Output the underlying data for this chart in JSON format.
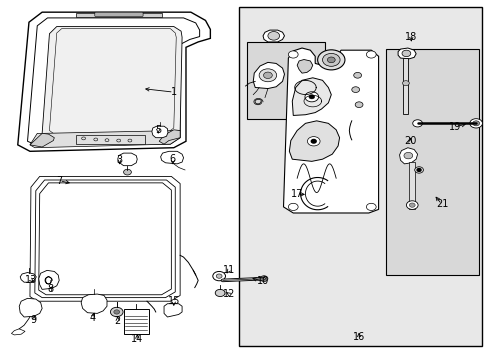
{
  "background_color": "#ffffff",
  "line_color": "#000000",
  "fig_width": 4.89,
  "fig_height": 3.6,
  "dpi": 100,
  "panel_bg": "#e8e8e8",
  "label_positions": {
    "1": [
      0.355,
      0.745,
      0.29,
      0.755
    ],
    "2": [
      0.24,
      0.108,
      0.24,
      0.128
    ],
    "3": [
      0.243,
      0.555,
      0.245,
      0.535
    ],
    "4": [
      0.188,
      0.115,
      0.195,
      0.138
    ],
    "5": [
      0.323,
      0.64,
      0.323,
      0.622
    ],
    "6": [
      0.353,
      0.558,
      0.353,
      0.535
    ],
    "7": [
      0.12,
      0.498,
      0.148,
      0.49
    ],
    "8": [
      0.102,
      0.195,
      0.11,
      0.21
    ],
    "9": [
      0.068,
      0.11,
      0.072,
      0.13
    ],
    "10": [
      0.538,
      0.218,
      0.51,
      0.228
    ],
    "11": [
      0.468,
      0.248,
      0.46,
      0.233
    ],
    "12": [
      0.468,
      0.182,
      0.458,
      0.192
    ],
    "13": [
      0.062,
      0.222,
      0.072,
      0.21
    ],
    "14": [
      0.28,
      0.058,
      0.28,
      0.078
    ],
    "15": [
      0.355,
      0.162,
      0.355,
      0.148
    ],
    "16": [
      0.735,
      0.062,
      0.735,
      0.075
    ],
    "17": [
      0.608,
      0.46,
      0.63,
      0.46
    ],
    "18": [
      0.842,
      0.898,
      0.842,
      0.878
    ],
    "19": [
      0.932,
      0.648,
      0.96,
      0.658
    ],
    "20": [
      0.84,
      0.608,
      0.84,
      0.625
    ],
    "21": [
      0.905,
      0.432,
      0.888,
      0.46
    ]
  },
  "font_size": 7.0
}
